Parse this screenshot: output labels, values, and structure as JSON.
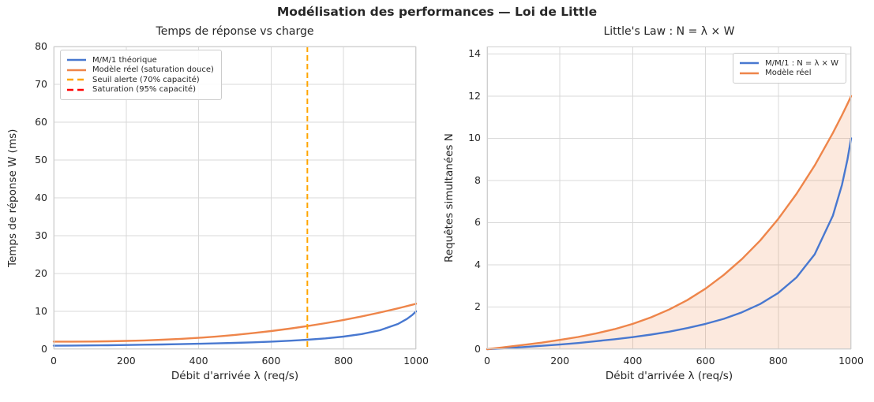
{
  "figure": {
    "title": "Modélisation des performances — Loi de Little"
  },
  "colors": {
    "mm1_blue": "#4878d0",
    "model_orange": "#ee854a",
    "alert_orange": "#ffa500",
    "saturation_red": "#ff0000",
    "grid": "#d9d9d9",
    "spine": "#cfcfcf",
    "text": "#262626"
  },
  "chart_data": [
    {
      "type": "line",
      "title": "Temps de réponse vs charge",
      "xlabel": "Débit d'arrivée λ (req/s)",
      "ylabel": "Temps de réponse W (ms)",
      "xlim": [
        0,
        1000
      ],
      "ylim": [
        0,
        80
      ],
      "xticks": [
        0,
        200,
        400,
        600,
        800,
        1000
      ],
      "yticks": [
        0,
        10,
        20,
        30,
        40,
        50,
        60,
        70,
        80
      ],
      "grid": true,
      "legend_position": "upper-left",
      "x": [
        0,
        50,
        100,
        150,
        200,
        250,
        300,
        350,
        400,
        450,
        500,
        550,
        600,
        650,
        700,
        750,
        800,
        850,
        900,
        950,
        975,
        990,
        1000
      ],
      "series": [
        {
          "key": "mm1-theorique",
          "name": "M/M/1 théorique",
          "color": "#4878d0",
          "style": "solid",
          "values": [
            0.91,
            0.95,
            1.0,
            1.05,
            1.11,
            1.18,
            1.25,
            1.33,
            1.43,
            1.54,
            1.67,
            1.82,
            2.0,
            2.22,
            2.5,
            2.86,
            3.33,
            4.0,
            5.0,
            6.67,
            8.0,
            9.09,
            10.0
          ]
        },
        {
          "key": "modele-reel",
          "name": "Modèle réel (saturation douce)",
          "color": "#ee854a",
          "style": "solid",
          "values": [
            2.0,
            2.01,
            2.03,
            2.09,
            2.18,
            2.31,
            2.49,
            2.72,
            3.01,
            3.36,
            3.77,
            4.24,
            4.79,
            5.41,
            6.1,
            6.87,
            7.72,
            8.66,
            9.68,
            10.79,
            11.39,
            11.75,
            12.0
          ]
        }
      ],
      "vlines": [
        {
          "key": "seuil-alerte",
          "name": "Seuil alerte (70% capacité)",
          "x": 700,
          "color": "#ffa500",
          "style": "dashed"
        },
        {
          "key": "saturation",
          "name": "Saturation (95% capacité)",
          "x": null,
          "color": "#ff0000",
          "style": "dashed"
        }
      ]
    },
    {
      "type": "line",
      "title": "Little's Law : N = λ × W",
      "xlabel": "Débit d'arrivée λ (req/s)",
      "ylabel": "Requêtes simultanées N",
      "xlim": [
        0,
        1000
      ],
      "ylim": [
        0,
        14.35
      ],
      "xticks": [
        0,
        200,
        400,
        600,
        800,
        1000
      ],
      "yticks": [
        0,
        2,
        4,
        6,
        8,
        10,
        12,
        14
      ],
      "grid": true,
      "legend_position": "upper-right",
      "x": [
        0,
        50,
        100,
        150,
        200,
        250,
        300,
        350,
        400,
        450,
        500,
        550,
        600,
        650,
        700,
        750,
        800,
        850,
        900,
        950,
        975,
        990,
        1000
      ],
      "series": [
        {
          "key": "mm1-littles-law",
          "name": "M/M/1 : N = λ × W",
          "color": "#4878d0",
          "style": "solid",
          "values": [
            0,
            0.05,
            0.1,
            0.16,
            0.22,
            0.29,
            0.38,
            0.47,
            0.57,
            0.69,
            0.83,
            1.0,
            1.2,
            1.44,
            1.75,
            2.14,
            2.67,
            3.4,
            4.5,
            6.33,
            7.8,
            9.0,
            10.0
          ]
        },
        {
          "key": "modele-reel",
          "name": "Modèle réel",
          "color": "#ee854a",
          "style": "solid",
          "fill": true,
          "fill_opacity": 0.18,
          "values": [
            0,
            0.1,
            0.2,
            0.31,
            0.44,
            0.58,
            0.75,
            0.95,
            1.2,
            1.51,
            1.88,
            2.33,
            2.87,
            3.52,
            4.27,
            5.15,
            6.18,
            7.36,
            8.71,
            10.25,
            11.1,
            11.63,
            12.0
          ]
        }
      ],
      "vlines": []
    }
  ]
}
